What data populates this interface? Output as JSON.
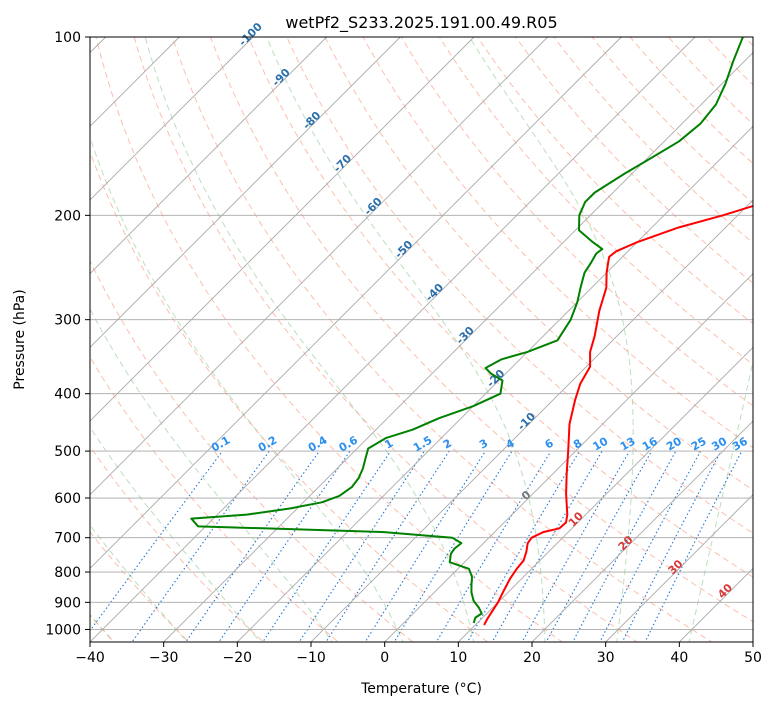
{
  "chart_data": {
    "type": "line",
    "title": "wetPf2_S233.2025.191.00.49.R05",
    "xlabel": "Temperature (°C)",
    "ylabel": "Pressure (hPa)",
    "xlim": [
      -40,
      50
    ],
    "ylim": [
      1050,
      100
    ],
    "y_scale": "log",
    "grid": true,
    "x_ticks": [
      -40,
      -30,
      -20,
      -10,
      0,
      10,
      20,
      30,
      40,
      50
    ],
    "y_ticks": [
      100,
      200,
      300,
      400,
      500,
      600,
      700,
      800,
      900,
      1000
    ],
    "temperature_series": {
      "color": "#ff0000",
      "points": [
        [
          11.2,
          983
        ],
        [
          10.8,
          960
        ],
        [
          10.4,
          930
        ],
        [
          10.0,
          900
        ],
        [
          9.2,
          860
        ],
        [
          8.4,
          820
        ],
        [
          8.0,
          790
        ],
        [
          7.8,
          765
        ],
        [
          7.0,
          740
        ],
        [
          6.0,
          715
        ],
        [
          5.8,
          700
        ],
        [
          6.6,
          685
        ],
        [
          8.3,
          675
        ],
        [
          8.4,
          660
        ],
        [
          7.5,
          640
        ],
        [
          4.5,
          590
        ],
        [
          1.8,
          545
        ],
        [
          -1.0,
          500
        ],
        [
          -4.5,
          450
        ],
        [
          -7.0,
          410
        ],
        [
          -8.5,
          385
        ],
        [
          -9.5,
          360
        ],
        [
          -11.5,
          340
        ],
        [
          -13.0,
          320
        ],
        [
          -15.8,
          290
        ],
        [
          -18.0,
          265
        ],
        [
          -20.0,
          250
        ],
        [
          -21.2,
          240
        ],
        [
          -21.8,
          235
        ],
        [
          -21.6,
          230
        ],
        [
          -20.0,
          222
        ],
        [
          -16.5,
          210
        ],
        [
          -12.0,
          200
        ],
        [
          -8.0,
          190
        ],
        [
          -6.0,
          180
        ],
        [
          -6.0,
          170
        ],
        [
          -5.0,
          160
        ],
        [
          -3.5,
          150
        ],
        [
          -3.0,
          140
        ],
        [
          -4.0,
          130
        ],
        [
          -6.0,
          120
        ],
        [
          -8.0,
          112
        ],
        [
          -9.5,
          106
        ],
        [
          -10.5,
          100
        ]
      ]
    },
    "dewpoint_series": {
      "color": "#008000",
      "points": [
        [
          9.5,
          975
        ],
        [
          9.0,
          955
        ],
        [
          9.3,
          940
        ],
        [
          8.2,
          920
        ],
        [
          6.5,
          895
        ],
        [
          5.0,
          865
        ],
        [
          4.0,
          840
        ],
        [
          3.0,
          815
        ],
        [
          1.5,
          790
        ],
        [
          -2.0,
          770
        ],
        [
          -3.0,
          745
        ],
        [
          -3.2,
          730
        ],
        [
          -3.0,
          715
        ],
        [
          -5.0,
          700
        ],
        [
          -15.0,
          685
        ],
        [
          -32.0,
          675
        ],
        [
          -41.0,
          670
        ],
        [
          -43.0,
          650
        ],
        [
          -36.0,
          640
        ],
        [
          -31.0,
          625
        ],
        [
          -27.5,
          610
        ],
        [
          -26.0,
          595
        ],
        [
          -25.5,
          575
        ],
        [
          -25.8,
          555
        ],
        [
          -26.5,
          535
        ],
        [
          -27.5,
          515
        ],
        [
          -28.5,
          495
        ],
        [
          -27.5,
          475
        ],
        [
          -25.0,
          460
        ],
        [
          -23.0,
          440
        ],
        [
          -20.0,
          420
        ],
        [
          -18.0,
          400
        ],
        [
          -19.5,
          380
        ],
        [
          -22.0,
          370
        ],
        [
          -23.5,
          362
        ],
        [
          -22.5,
          350
        ],
        [
          -20.0,
          340
        ],
        [
          -17.5,
          325
        ],
        [
          -18.5,
          300
        ],
        [
          -20.0,
          280
        ],
        [
          -21.5,
          265
        ],
        [
          -23.0,
          250
        ],
        [
          -23.5,
          240
        ],
        [
          -24.0,
          232
        ],
        [
          -23.8,
          228
        ],
        [
          -26.0,
          222
        ],
        [
          -29.5,
          212
        ],
        [
          -31.5,
          200
        ],
        [
          -32.5,
          190
        ],
        [
          -32.5,
          183
        ],
        [
          -31.0,
          170
        ],
        [
          -29.5,
          160
        ],
        [
          -28.0,
          150
        ],
        [
          -27.5,
          140
        ],
        [
          -28.0,
          130
        ],
        [
          -29.5,
          120
        ],
        [
          -31.5,
          110
        ],
        [
          -33.5,
          100
        ]
      ]
    },
    "dry_adiabat_labels": [
      "-100",
      "-90",
      "-80",
      "-70",
      "-60",
      "-50",
      "-40",
      "-30",
      "-20",
      "-10",
      "0",
      "10",
      "20",
      "30",
      "40"
    ],
    "dry_adiabat_values": [
      -100,
      -90,
      -80,
      -70,
      -60,
      -50,
      -40,
      -30,
      -20,
      -10,
      0,
      10,
      20,
      30,
      40
    ],
    "mixing_ratio_labels": [
      "0.1",
      "0.2",
      "0.4",
      "0.6",
      "1",
      "1.5",
      "2",
      "3",
      "4",
      "6",
      "8",
      "10",
      "13",
      "16",
      "20",
      "25",
      "30",
      "36"
    ],
    "mixing_ratio_values": [
      0.1,
      0.2,
      0.4,
      0.6,
      1,
      1.5,
      2,
      3,
      4,
      6,
      8,
      10,
      13,
      16,
      20,
      25,
      30,
      36
    ]
  }
}
